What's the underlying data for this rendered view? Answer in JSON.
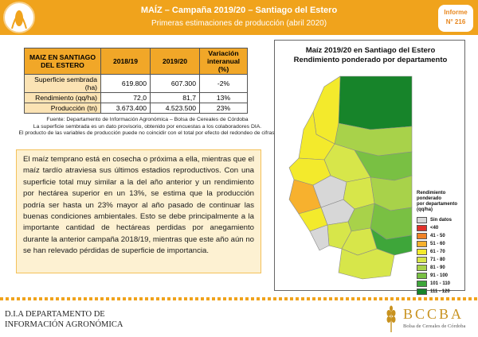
{
  "header": {
    "title": "MAÍZ – Campaña 2019/20 – Santiago del Estero",
    "subtitle": "Primeras estimaciones de producción (abril 2020)",
    "badge_line1": "Informe",
    "badge_line2": "N° 216",
    "colors": {
      "bar": "#f0a31c",
      "accent": "#e8871e"
    }
  },
  "table": {
    "headers": [
      "MAIZ EN SANTIAGO DEL ESTERO",
      "2018/19",
      "2019/20",
      "Variación interanual (%)"
    ],
    "rows": [
      {
        "label": "Superficie sembrada (ha)",
        "v1": "619.800",
        "v2": "607.300",
        "pct": "-2%"
      },
      {
        "label": "Rendimiento (qq/ha)",
        "v1": "72,0",
        "v2": "81,7",
        "pct": "13%"
      },
      {
        "label": "Producción (tn)",
        "v1": "3.673.400",
        "v2": "4.523.500",
        "pct": "23%"
      }
    ]
  },
  "notes": {
    "line1": "Fuente: Departamento de Información Agronómica – Bolsa de Cereales de Córdoba",
    "line2": "La superficie sembrada es un dato provisorio, obtenido por encuestas a los colaboradores DIA.",
    "line3": "El producto de las variables de producción puede no coincidir con el total por efecto del redondeo de cifras."
  },
  "paragraph": "El maíz temprano está en cosecha o próxima a ella, mientras que el maíz tardío atraviesa sus últimos estadios reproductivos. Con una superficie total muy similar a la del año anterior y un rendimiento por hectárea superior en un 13%, se estima que la producción podría ser hasta un 23% mayor al año pasado de continuar las buenas condiciones ambientales. Esto se debe principalmente a la importante cantidad de hectáreas perdidas por anegamiento durante la anterior campaña 2018/19, mientras que este año aún no se han relevado pérdidas de superficie de importancia.",
  "map": {
    "title_line1": "Maíz 2019/20 en Santiago del Estero",
    "title_line2": "Rendimiento ponderado por departamento",
    "legend_title": [
      "Rendimiento",
      "ponderado",
      "por departamento",
      "(qq/ha)"
    ],
    "legend": [
      {
        "label": "Sin datos",
        "color": "#d7d7d7"
      },
      {
        "label": "<40",
        "color": "#e0312a"
      },
      {
        "label": "41 - 50",
        "color": "#f08226"
      },
      {
        "label": "51 - 60",
        "color": "#f7b12e"
      },
      {
        "label": "61 - 70",
        "color": "#f3ea2c"
      },
      {
        "label": "71 - 80",
        "color": "#d7e64a"
      },
      {
        "label": "81 - 90",
        "color": "#a8d24a"
      },
      {
        "label": "91 - 100",
        "color": "#79c043"
      },
      {
        "label": "101 - 110",
        "color": "#3ea63a"
      },
      {
        "label": "111 - 120",
        "color": "#17842a"
      }
    ]
  },
  "footer": {
    "org_line1": "D.I.A DEPARTAMENTO DE",
    "org_line2": "INFORMACIÓN AGRONÓMICA",
    "brand": "BCCBA",
    "brand_sub": "Bolsa de Cereales de Córdoba"
  }
}
